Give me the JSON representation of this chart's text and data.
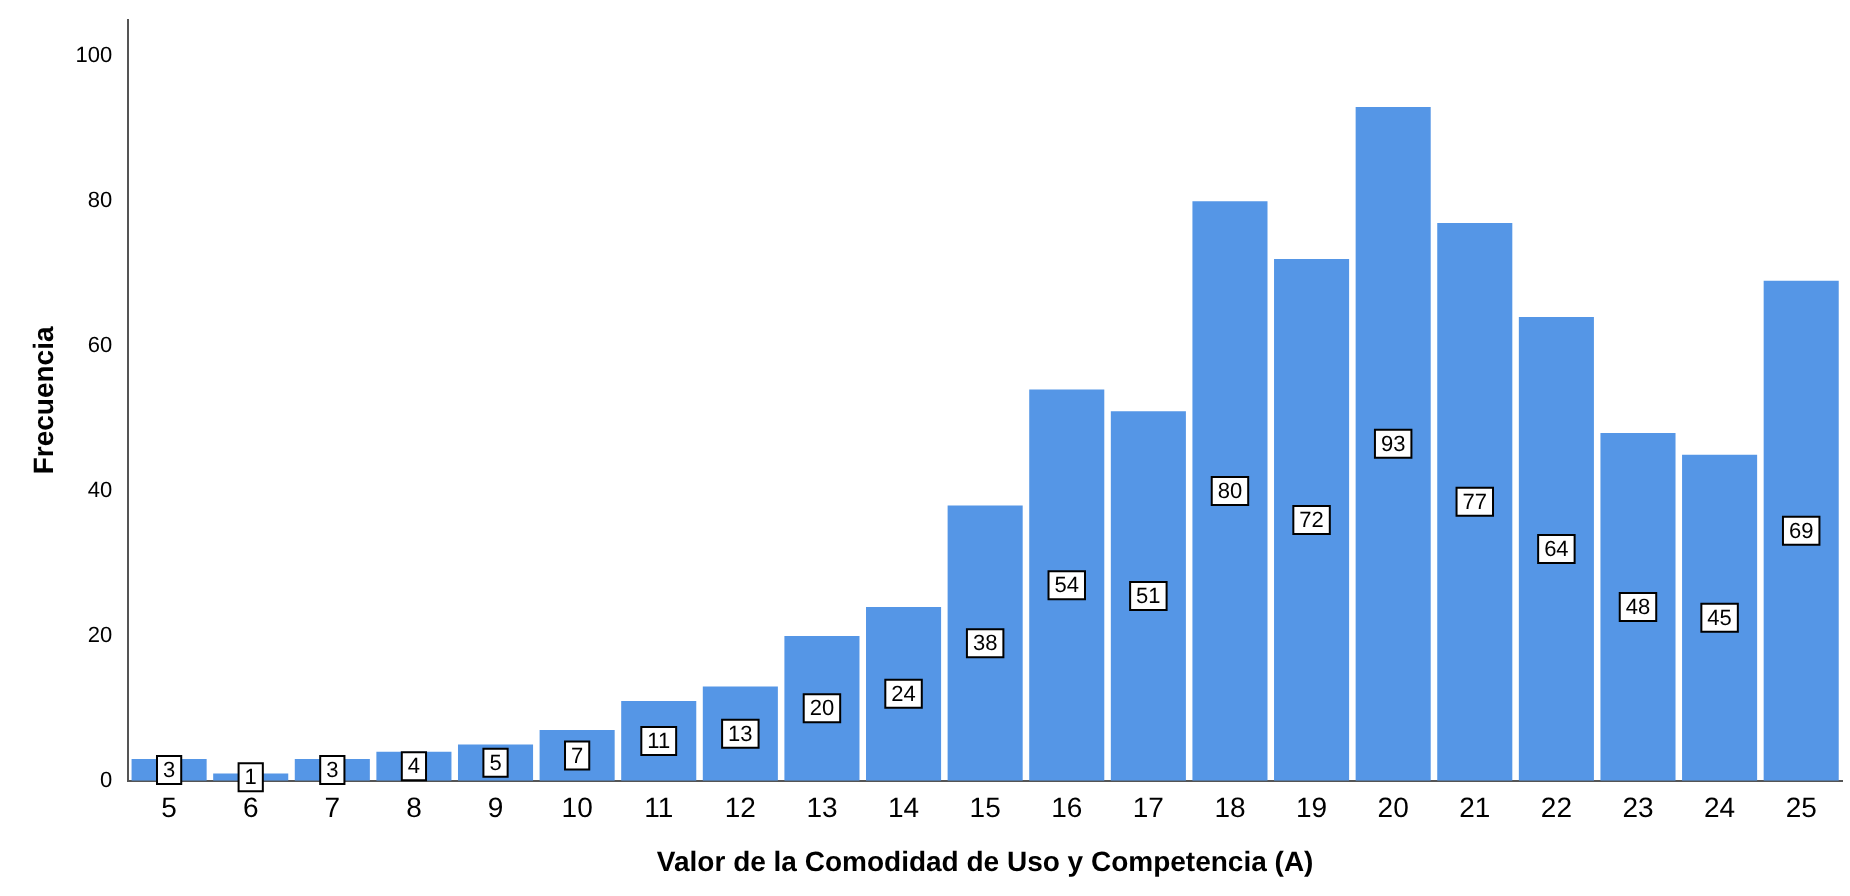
{
  "chart_data": {
    "type": "bar",
    "xlabel": "Valor de la Comodidad de Uso y Competencia (A)",
    "ylabel": "Frecuencia",
    "categories": [
      "5",
      "6",
      "7",
      "8",
      "9",
      "10",
      "11",
      "12",
      "13",
      "14",
      "15",
      "16",
      "17",
      "18",
      "19",
      "20",
      "21",
      "22",
      "23",
      "24",
      "25"
    ],
    "values": [
      3,
      1,
      3,
      4,
      5,
      7,
      11,
      13,
      20,
      24,
      38,
      54,
      51,
      80,
      72,
      93,
      77,
      64,
      48,
      45,
      69
    ],
    "color": "#5596e6",
    "ylim": [
      0,
      105
    ],
    "yticks": [
      0,
      20,
      40,
      60,
      80,
      100
    ],
    "grid": false,
    "legend": false,
    "data_labels": true
  }
}
